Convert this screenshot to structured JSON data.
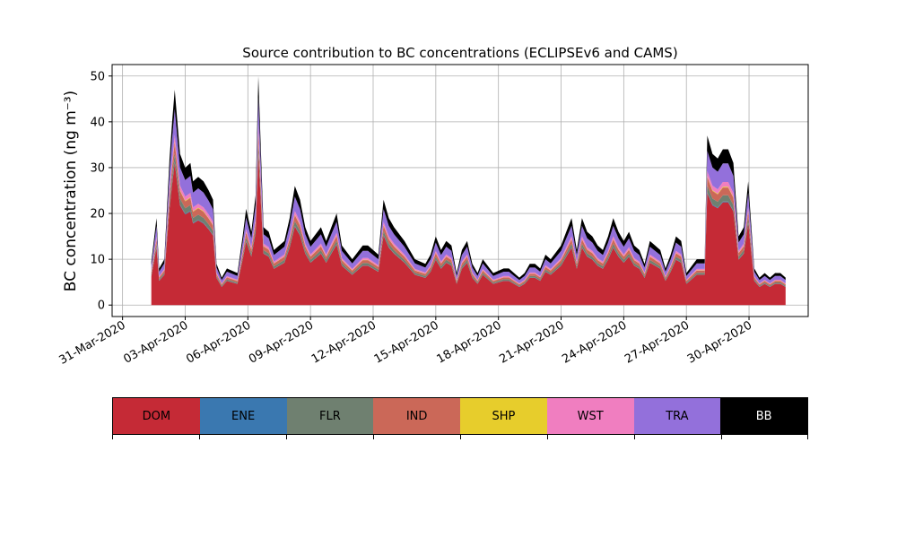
{
  "chart_data": {
    "type": "area",
    "stacked": true,
    "title": "Source contribution to BC concentrations (ECLIPSEv6 and CAMS)",
    "ylabel": "BC concentration (ng m⁻³)",
    "xlabel": "",
    "ylim": [
      -2.5,
      52.5
    ],
    "yticks": [
      0,
      10,
      20,
      30,
      40,
      50
    ],
    "xlim": [
      "2020-03-30T12:00",
      "2020-05-02T20:00"
    ],
    "xticks": [
      "31-Mar-2020",
      "03-Apr-2020",
      "06-Apr-2020",
      "09-Apr-2020",
      "12-Apr-2020",
      "15-Apr-2020",
      "18-Apr-2020",
      "21-Apr-2020",
      "24-Apr-2020",
      "27-Apr-2020",
      "30-Apr-2020"
    ],
    "grid": true,
    "total_keypoints": [
      [
        "2020-04-01T09:00",
        9.5
      ],
      [
        "2020-04-01T15:00",
        19
      ],
      [
        "2020-04-01T18:00",
        8
      ],
      [
        "2020-04-02T00:00",
        10
      ],
      [
        "2020-04-02T06:00",
        32
      ],
      [
        "2020-04-02T09:00",
        40
      ],
      [
        "2020-04-02T12:00",
        47
      ],
      [
        "2020-04-02T18:00",
        33
      ],
      [
        "2020-04-03T00:00",
        30
      ],
      [
        "2020-04-03T06:00",
        31
      ],
      [
        "2020-04-03T09:00",
        27
      ],
      [
        "2020-04-03T15:00",
        28
      ],
      [
        "2020-04-03T21:00",
        27
      ],
      [
        "2020-04-04T03:00",
        25
      ],
      [
        "2020-04-04T08:00",
        23
      ],
      [
        "2020-04-04T12:00",
        9
      ],
      [
        "2020-04-04T18:00",
        6
      ],
      [
        "2020-04-05T00:00",
        8
      ],
      [
        "2020-04-05T12:00",
        7
      ],
      [
        "2020-04-05T18:00",
        15
      ],
      [
        "2020-04-05T22:00",
        21
      ],
      [
        "2020-04-06T04:00",
        16
      ],
      [
        "2020-04-06T09:00",
        24
      ],
      [
        "2020-04-06T12:00",
        50
      ],
      [
        "2020-04-06T18:00",
        17
      ],
      [
        "2020-04-07T00:00",
        16
      ],
      [
        "2020-04-07T06:00",
        12
      ],
      [
        "2020-04-07T18:00",
        14
      ],
      [
        "2020-04-08T00:00",
        19
      ],
      [
        "2020-04-08T06:00",
        26
      ],
      [
        "2020-04-08T12:00",
        23
      ],
      [
        "2020-04-08T18:00",
        17
      ],
      [
        "2020-04-09T00:00",
        14
      ],
      [
        "2020-04-09T12:00",
        17
      ],
      [
        "2020-04-09T18:00",
        14
      ],
      [
        "2020-04-10T00:00",
        17
      ],
      [
        "2020-04-10T06:00",
        20
      ],
      [
        "2020-04-10T12:00",
        13
      ],
      [
        "2020-04-11T00:00",
        10
      ],
      [
        "2020-04-11T12:00",
        13
      ],
      [
        "2020-04-11T18:00",
        13
      ],
      [
        "2020-04-12T06:00",
        11
      ],
      [
        "2020-04-12T12:00",
        23
      ],
      [
        "2020-04-12T18:00",
        19
      ],
      [
        "2020-04-13T00:00",
        17
      ],
      [
        "2020-04-13T12:00",
        14
      ],
      [
        "2020-04-14T00:00",
        10
      ],
      [
        "2020-04-14T12:00",
        9
      ],
      [
        "2020-04-14T18:00",
        11
      ],
      [
        "2020-04-15T00:00",
        15
      ],
      [
        "2020-04-15T06:00",
        12
      ],
      [
        "2020-04-15T12:00",
        14
      ],
      [
        "2020-04-15T18:00",
        13
      ],
      [
        "2020-04-16T00:00",
        7
      ],
      [
        "2020-04-16T06:00",
        12
      ],
      [
        "2020-04-16T12:00",
        14
      ],
      [
        "2020-04-16T18:00",
        9
      ],
      [
        "2020-04-17T00:00",
        7
      ],
      [
        "2020-04-17T06:00",
        10
      ],
      [
        "2020-04-17T18:00",
        7
      ],
      [
        "2020-04-18T06:00",
        8
      ],
      [
        "2020-04-18T12:00",
        8
      ],
      [
        "2020-04-18T18:00",
        7
      ],
      [
        "2020-04-19T00:00",
        6
      ],
      [
        "2020-04-19T06:00",
        7
      ],
      [
        "2020-04-19T12:00",
        9
      ],
      [
        "2020-04-19T18:00",
        9
      ],
      [
        "2020-04-20T00:00",
        8
      ],
      [
        "2020-04-20T06:00",
        11
      ],
      [
        "2020-04-20T12:00",
        10
      ],
      [
        "2020-04-21T00:00",
        13
      ],
      [
        "2020-04-21T06:00",
        16
      ],
      [
        "2020-04-21T12:00",
        19
      ],
      [
        "2020-04-21T18:00",
        12
      ],
      [
        "2020-04-22T00:00",
        19
      ],
      [
        "2020-04-22T06:00",
        16
      ],
      [
        "2020-04-22T12:00",
        15
      ],
      [
        "2020-04-22T18:00",
        13
      ],
      [
        "2020-04-23T00:00",
        12
      ],
      [
        "2020-04-23T06:00",
        15
      ],
      [
        "2020-04-23T12:00",
        19
      ],
      [
        "2020-04-23T18:00",
        16
      ],
      [
        "2020-04-24T00:00",
        14
      ],
      [
        "2020-04-24T06:00",
        16
      ],
      [
        "2020-04-24T12:00",
        13
      ],
      [
        "2020-04-24T18:00",
        12
      ],
      [
        "2020-04-25T00:00",
        9
      ],
      [
        "2020-04-25T06:00",
        14
      ],
      [
        "2020-04-25T12:00",
        13
      ],
      [
        "2020-04-25T18:00",
        12
      ],
      [
        "2020-04-26T00:00",
        8
      ],
      [
        "2020-04-26T06:00",
        11
      ],
      [
        "2020-04-26T12:00",
        15
      ],
      [
        "2020-04-26T18:00",
        14
      ],
      [
        "2020-04-27T00:00",
        7
      ],
      [
        "2020-04-27T12:00",
        10
      ],
      [
        "2020-04-27T21:00",
        10
      ],
      [
        "2020-04-28T00:00",
        37
      ],
      [
        "2020-04-28T06:00",
        33
      ],
      [
        "2020-04-28T12:00",
        32
      ],
      [
        "2020-04-28T18:00",
        34
      ],
      [
        "2020-04-29T00:00",
        34
      ],
      [
        "2020-04-29T06:00",
        31
      ],
      [
        "2020-04-29T12:00",
        15
      ],
      [
        "2020-04-29T18:00",
        17
      ],
      [
        "2020-04-29T23:00",
        27
      ],
      [
        "2020-04-30T06:00",
        8
      ],
      [
        "2020-04-30T12:00",
        6
      ],
      [
        "2020-04-30T18:00",
        7
      ],
      [
        "2020-05-01T00:00",
        6
      ],
      [
        "2020-05-01T06:00",
        7
      ],
      [
        "2020-05-01T12:00",
        7
      ],
      [
        "2020-05-01T18:00",
        6
      ]
    ],
    "series": [
      {
        "name": "DOM",
        "color": "#c52a36",
        "share_of_total": 0.66
      },
      {
        "name": "ENE",
        "color": "#3a78b0",
        "share_of_total": 0.005
      },
      {
        "name": "FLR",
        "color": "#6f8070",
        "share_of_total": 0.04
      },
      {
        "name": "IND",
        "color": "#cb6858",
        "share_of_total": 0.05
      },
      {
        "name": "SHP",
        "color": "#e7cd2c",
        "share_of_total": 0.005
      },
      {
        "name": "WST",
        "color": "#f07ec0",
        "share_of_total": 0.03
      },
      {
        "name": "TRA",
        "color": "#9370db",
        "share_of_total": 0.12
      },
      {
        "name": "BB",
        "color": "#000000",
        "share_of_total": 0.09
      }
    ]
  },
  "legend": {
    "items": [
      {
        "label": "DOM",
        "color": "#c52a36",
        "text_color": "#000000"
      },
      {
        "label": "ENE",
        "color": "#3a78b0",
        "text_color": "#000000"
      },
      {
        "label": "FLR",
        "color": "#6f8070",
        "text_color": "#000000"
      },
      {
        "label": "IND",
        "color": "#cb6858",
        "text_color": "#000000"
      },
      {
        "label": "SHP",
        "color": "#e7cd2c",
        "text_color": "#000000"
      },
      {
        "label": "WST",
        "color": "#f07ec0",
        "text_color": "#000000"
      },
      {
        "label": "TRA",
        "color": "#9370db",
        "text_color": "#000000"
      },
      {
        "label": "BB",
        "color": "#000000",
        "text_color": "#ffffff"
      }
    ]
  }
}
